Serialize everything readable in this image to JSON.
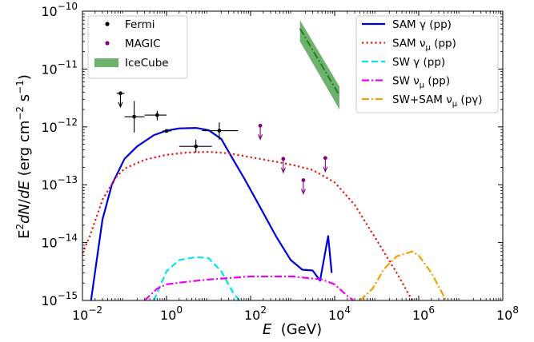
{
  "chart_data": {
    "type": "line",
    "xlabel": "E  (GeV)",
    "ylabel": "E²dN/dE (erg cm⁻² s⁻¹)",
    "xscale": "log",
    "yscale": "log",
    "xlim": [
      0.01,
      100000000
    ],
    "ylim": [
      1e-15,
      1e-10
    ],
    "x_ticks": [
      {
        "value": 0.01,
        "base": "10",
        "exp": "−2"
      },
      {
        "value": 1,
        "base": "10",
        "exp": "0"
      },
      {
        "value": 100,
        "base": "10",
        "exp": "2"
      },
      {
        "value": 10000,
        "base": "10",
        "exp": "4"
      },
      {
        "value": 1000000,
        "base": "10",
        "exp": "6"
      },
      {
        "value": 100000000,
        "base": "10",
        "exp": "8"
      }
    ],
    "y_ticks": [
      {
        "value": 1e-15,
        "base": "10",
        "exp": "−15"
      },
      {
        "value": 1e-14,
        "base": "10",
        "exp": "−14"
      },
      {
        "value": 1e-13,
        "base": "10",
        "exp": "−13"
      },
      {
        "value": 1e-12,
        "base": "10",
        "exp": "−12"
      },
      {
        "value": 1e-11,
        "base": "10",
        "exp": "−11"
      },
      {
        "value": 1e-10,
        "base": "10",
        "exp": "−10"
      }
    ],
    "legend_left": {
      "placement": "top-left",
      "entries": [
        {
          "label": "Fermi",
          "color": "#000000",
          "kind": "point"
        },
        {
          "label": "MAGIC",
          "color": "#800080",
          "kind": "point"
        },
        {
          "label": "IceCube",
          "color": "#6db36d",
          "kind": "band"
        }
      ]
    },
    "legend_right": {
      "placement": "top-right",
      "entries": [
        {
          "label": "SAM γ (pp)",
          "color": "#0000dd",
          "dash": "solid"
        },
        {
          "label": "SAM ν",
          "sub": "μ",
          "suffix": " (pp)",
          "color": "#ee1111",
          "dash": "dotted"
        },
        {
          "label": "SW γ (pp)",
          "color": "#00e5ee",
          "dash": "dashed"
        },
        {
          "label": "SW ν",
          "sub": "μ",
          "suffix": " (pp)",
          "color": "#ee00ee",
          "dash": "dashdot"
        },
        {
          "label": "SW+SAM ν",
          "sub": "μ",
          "suffix": " (pγ)",
          "color": "#f0a000",
          "dash": "dashdot"
        }
      ]
    },
    "series": [
      {
        "name": "SAM γ (pp)",
        "color": "#0000dd",
        "dash": "solid",
        "width": 2.2,
        "points": [
          [
            0.016,
            1e-15
          ],
          [
            0.03,
            2.5e-14
          ],
          [
            0.05,
            1e-13
          ],
          [
            0.1,
            2.8e-13
          ],
          [
            0.2,
            4.6e-13
          ],
          [
            0.5,
            7.2e-13
          ],
          [
            1,
            8.6e-13
          ],
          [
            2,
            9.4e-13
          ],
          [
            5,
            9.6e-13
          ],
          [
            10,
            8.8e-13
          ],
          [
            20,
            6.2e-13
          ],
          [
            40,
            2.6e-13
          ],
          [
            70,
            1.3e-13
          ],
          [
            150,
            4.8e-14
          ],
          [
            400,
            1.3e-14
          ],
          [
            900,
            5e-15
          ],
          [
            1700,
            3.4e-15
          ],
          [
            3000,
            3.3e-15
          ],
          [
            4500,
            2.2e-15
          ],
          [
            7000,
            1.3e-14
          ],
          [
            8500,
            3e-15
          ]
        ]
      },
      {
        "name": "SAM ν_μ (pp)",
        "color": "#ee1111",
        "dash": "dotted",
        "width": 2.2,
        "points": [
          [
            0.01,
            6.5e-15
          ],
          [
            0.015,
            1.3e-14
          ],
          [
            0.03,
            5.5e-14
          ],
          [
            0.06,
            1.3e-13
          ],
          [
            0.1,
            1.9e-13
          ],
          [
            0.3,
            2.7e-13
          ],
          [
            1,
            3.3e-13
          ],
          [
            3,
            3.6e-13
          ],
          [
            10,
            3.7e-13
          ],
          [
            30,
            3.5e-13
          ],
          [
            100,
            3e-13
          ],
          [
            300,
            2.6e-13
          ],
          [
            1000,
            2.2e-13
          ],
          [
            3000,
            1.8e-13
          ],
          [
            10000,
            1.1e-13
          ],
          [
            30000,
            4.5e-14
          ],
          [
            100000,
            1.1e-14
          ],
          [
            300000,
            3e-15
          ],
          [
            700000,
            1e-15
          ]
        ]
      },
      {
        "name": "SW γ (pp)",
        "color": "#00e5ee",
        "dash": "dashed",
        "width": 2.2,
        "points": [
          [
            0.5,
            1e-15
          ],
          [
            1,
            3.2e-15
          ],
          [
            2,
            5e-15
          ],
          [
            5,
            5.6e-15
          ],
          [
            10,
            5.4e-15
          ],
          [
            20,
            3.2e-15
          ],
          [
            40,
            1.3e-15
          ],
          [
            55,
            1e-15
          ]
        ]
      },
      {
        "name": "SW ν_μ (pp)",
        "color": "#ee00ee",
        "dash": "dashdot",
        "width": 2.2,
        "points": [
          [
            0.3,
            1e-15
          ],
          [
            0.6,
            1.6e-15
          ],
          [
            1,
            1.9e-15
          ],
          [
            3,
            2.1e-15
          ],
          [
            10,
            2.3e-15
          ],
          [
            100,
            2.6e-15
          ],
          [
            1000,
            2.6e-15
          ],
          [
            5000,
            2.3e-15
          ],
          [
            10000,
            1.9e-15
          ],
          [
            20000,
            1.2e-15
          ],
          [
            28000,
            1e-15
          ]
        ]
      },
      {
        "name": "SW+SAM ν_μ (pγ)",
        "color": "#f0a000",
        "dash": "dashdot",
        "width": 2.2,
        "points": [
          [
            40000,
            1e-15
          ],
          [
            80000,
            1.6e-15
          ],
          [
            150000,
            3.5e-15
          ],
          [
            300000,
            5.8e-15
          ],
          [
            700000,
            7e-15
          ],
          [
            1000000,
            6e-15
          ],
          [
            2000000,
            3e-15
          ],
          [
            3500000,
            1.4e-15
          ],
          [
            4500000,
            1e-15
          ]
        ]
      }
    ],
    "icecube_band": {
      "label": "IceCube",
      "color": "#6db36d",
      "x": [
        1500,
        13000
      ],
      "upper": [
        7e-11,
        5e-12
      ],
      "lower": [
        3e-11,
        2e-12
      ],
      "center_line": {
        "color": "#2e7d2e",
        "points": [
          [
            1500,
            5e-11
          ],
          [
            13000,
            3.5e-12
          ]
        ]
      }
    },
    "fermi_points": [
      {
        "x": 0.08,
        "y": 3.8e-12,
        "xerr": [
          0.065,
          0.1
        ],
        "upper_limit": true
      },
      {
        "x": 0.17,
        "y": 1.5e-12,
        "xerr": [
          0.1,
          0.3
        ],
        "yerr": [
          8e-13,
          2.8e-12
        ]
      },
      {
        "x": 0.6,
        "y": 1.6e-12,
        "xerr": [
          0.3,
          1
        ],
        "yerr": [
          1.3e-12,
          1.9e-12
        ]
      },
      {
        "x": 1.0,
        "y": 8.5e-13,
        "xerr": [
          0.8,
          1.3
        ]
      },
      {
        "x": 5,
        "y": 4.6e-13,
        "xerr": [
          2,
          12
        ],
        "yerr": [
          3.6e-13,
          6e-13
        ]
      },
      {
        "x": 18,
        "y": 8.6e-13,
        "xerr": [
          7,
          50
        ],
        "yerr": [
          6e-13,
          1.2e-12
        ]
      }
    ],
    "magic_points": [
      {
        "x": 170,
        "y": 1.05e-12,
        "upper_limit": true
      },
      {
        "x": 600,
        "y": 2.8e-13,
        "upper_limit": true
      },
      {
        "x": 1800,
        "y": 1.2e-13,
        "upper_limit": true
      },
      {
        "x": 6000,
        "y": 2.9e-13,
        "upper_limit": true
      }
    ]
  }
}
